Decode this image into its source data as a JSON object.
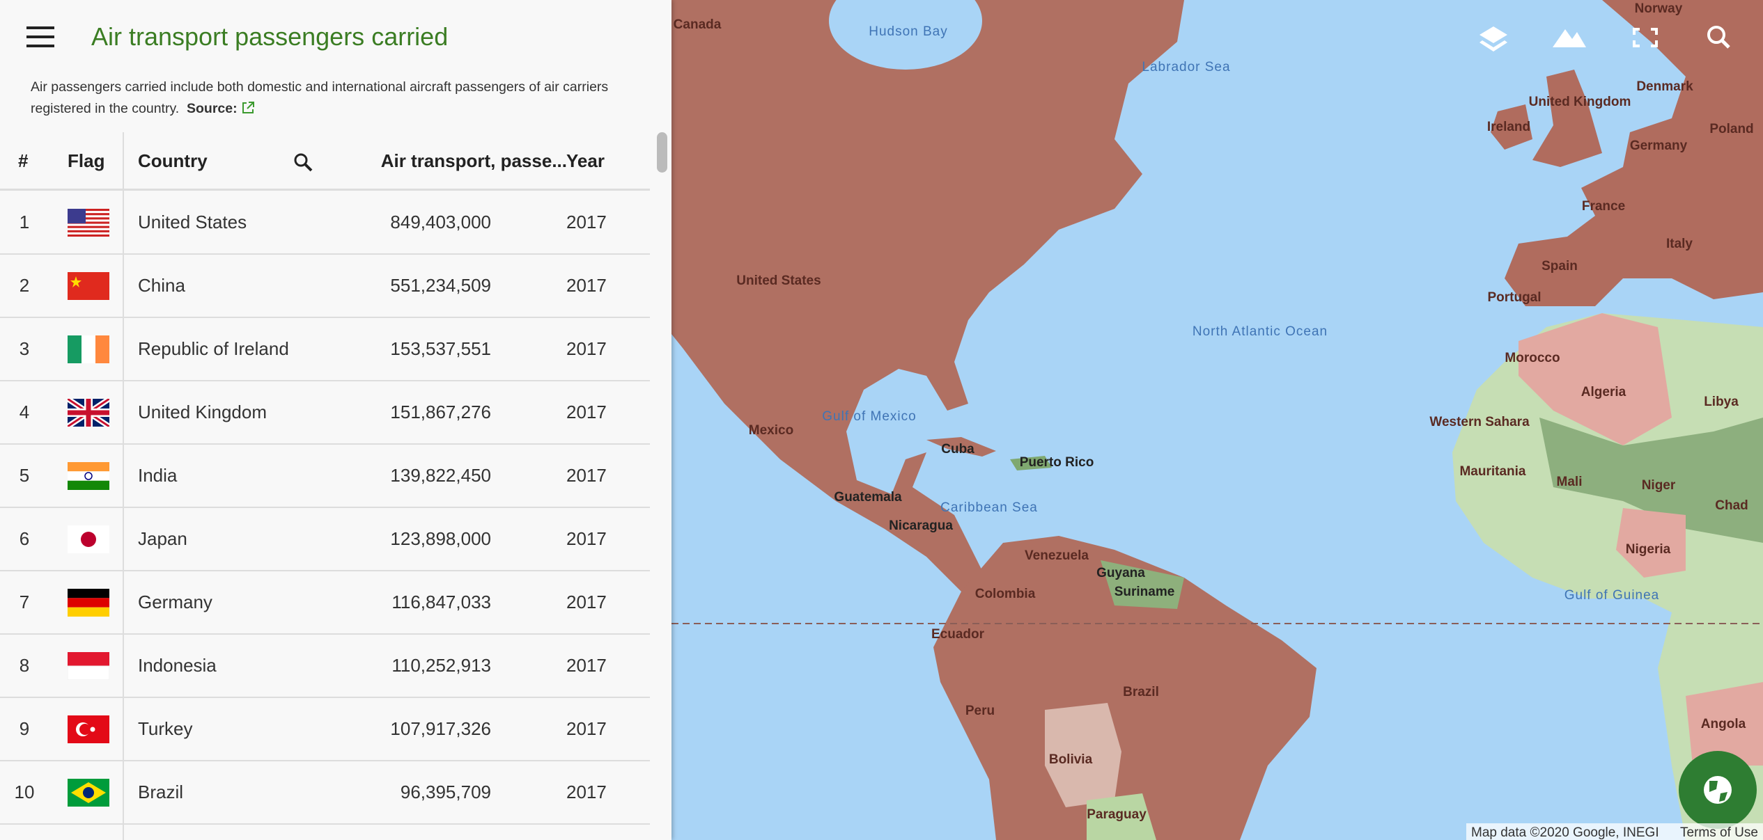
{
  "header": {
    "title": "Air transport passengers carried",
    "description": "Air passengers carried include both domestic and international aircraft passengers of air carriers registered in the country.",
    "source_label": "Source:"
  },
  "table": {
    "columns": [
      "#",
      "Flag",
      "Country",
      "Air transport, passe...",
      "Year"
    ],
    "rows": [
      [
        1,
        "United States",
        "849,403,000",
        2017
      ],
      [
        2,
        "China",
        "551,234,509",
        2017
      ],
      [
        3,
        "Republic of Ireland",
        "153,537,551",
        2017
      ],
      [
        4,
        "United Kingdom",
        "151,867,276",
        2017
      ],
      [
        5,
        "India",
        "139,822,450",
        2017
      ],
      [
        6,
        "Japan",
        "123,898,000",
        2017
      ],
      [
        7,
        "Germany",
        "116,847,033",
        2017
      ],
      [
        8,
        "Indonesia",
        "110,252,913",
        2017
      ],
      [
        9,
        "Turkey",
        "107,917,326",
        2017
      ],
      [
        10,
        "Brazil",
        "96,395,709",
        2017
      ]
    ]
  },
  "map": {
    "labels": [
      "Canada",
      "Hudson Bay",
      "Labrador Sea",
      "United States",
      "Mexico",
      "Gulf of Mexico",
      "North Atlantic Ocean",
      "Caribbean Sea",
      "Cuba",
      "Puerto Rico",
      "Venezuela",
      "Colombia",
      "Ecuador",
      "Peru",
      "Brazil",
      "Bolivia",
      "Guyana",
      "Suriname",
      "Guatemala",
      "Nicaragua",
      "Paraguay",
      "Ireland",
      "United Kingdom",
      "Norway",
      "Denmark",
      "Germany",
      "Poland",
      "France",
      "Spain",
      "Portugal",
      "Italy",
      "Morocco",
      "Algeria",
      "Libya",
      "Western Sahara",
      "Mauritania",
      "Mali",
      "Niger",
      "Chad",
      "Nigeria",
      "Gulf of Guinea",
      "Angola"
    ],
    "attribution": "Map data ©2020 Google, INEGI",
    "terms": "Terms of Use"
  }
}
